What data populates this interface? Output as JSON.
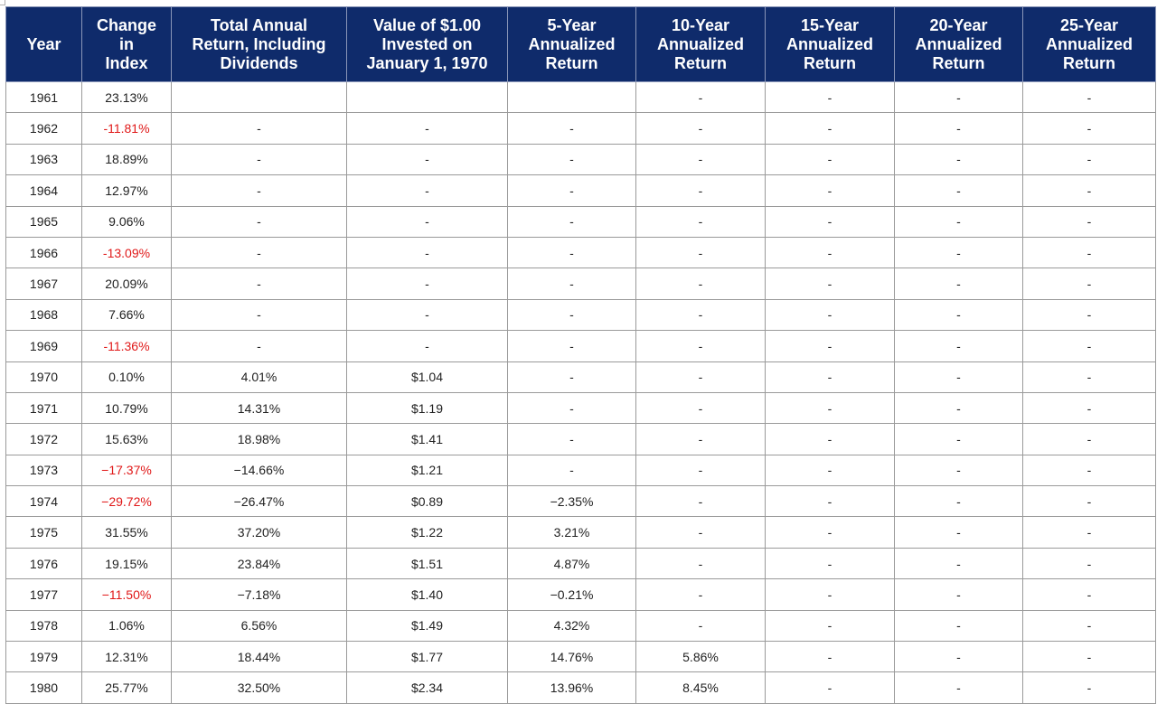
{
  "table": {
    "headers": [
      "Year",
      "Change\nin\nIndex",
      "Total Annual\nReturn, Including\nDividends",
      "Value of $1.00\nInvested on\nJanuary 1, 1970",
      "5-Year\nAnnualized\nReturn",
      "10-Year\nAnnualized\nReturn",
      "15-Year\nAnnualized\nReturn",
      "20-Year\nAnnualized\nReturn",
      "25-Year\nAnnualized\nReturn"
    ],
    "rows": [
      [
        "1961",
        "23.13%",
        "",
        "",
        "",
        "-",
        "-",
        "-",
        "-"
      ],
      [
        "1962",
        "-11.81%",
        "-",
        "-",
        "-",
        "-",
        "-",
        "-",
        "-"
      ],
      [
        "1963",
        "18.89%",
        "-",
        "-",
        "-",
        "-",
        "-",
        "-",
        "-"
      ],
      [
        "1964",
        "12.97%",
        "-",
        "-",
        "-",
        "-",
        "-",
        "-",
        "-"
      ],
      [
        "1965",
        "9.06%",
        "-",
        "-",
        "-",
        "-",
        "-",
        "-",
        "-"
      ],
      [
        "1966",
        "-13.09%",
        "-",
        "-",
        "-",
        "-",
        "-",
        "-",
        "-"
      ],
      [
        "1967",
        "20.09%",
        "-",
        "-",
        "-",
        "-",
        "-",
        "-",
        "-"
      ],
      [
        "1968",
        "7.66%",
        "-",
        "-",
        "-",
        "-",
        "-",
        "-",
        "-"
      ],
      [
        "1969",
        "-11.36%",
        "-",
        "-",
        "-",
        "-",
        "-",
        "-",
        "-"
      ],
      [
        "1970",
        "0.10%",
        "4.01%",
        "$1.04",
        "-",
        "-",
        "-",
        "-",
        "-"
      ],
      [
        "1971",
        "10.79%",
        "14.31%",
        "$1.19",
        "-",
        "-",
        "-",
        "-",
        "-"
      ],
      [
        "1972",
        "15.63%",
        "18.98%",
        "$1.41",
        "-",
        "-",
        "-",
        "-",
        "-"
      ],
      [
        "1973",
        "−17.37%",
        "−14.66%",
        "$1.21",
        "-",
        "-",
        "-",
        "-",
        "-"
      ],
      [
        "1974",
        "−29.72%",
        "−26.47%",
        "$0.89",
        "−2.35%",
        "-",
        "-",
        "-",
        "-"
      ],
      [
        "1975",
        "31.55%",
        "37.20%",
        "$1.22",
        "3.21%",
        "-",
        "-",
        "-",
        "-"
      ],
      [
        "1976",
        "19.15%",
        "23.84%",
        "$1.51",
        "4.87%",
        "-",
        "-",
        "-",
        "-"
      ],
      [
        "1977",
        "−11.50%",
        "−7.18%",
        "$1.40",
        "−0.21%",
        "-",
        "-",
        "-",
        "-"
      ],
      [
        "1978",
        "1.06%",
        "6.56%",
        "$1.49",
        "4.32%",
        "-",
        "-",
        "-",
        "-"
      ],
      [
        "1979",
        "12.31%",
        "18.44%",
        "$1.77",
        "14.76%",
        "5.86%",
        "-",
        "-",
        "-"
      ],
      [
        "1980",
        "25.77%",
        "32.50%",
        "$2.34",
        "13.96%",
        "8.45%",
        "-",
        "-",
        "-"
      ]
    ],
    "negative_color": "#e01818",
    "header_bg": "#0f2b6b"
  }
}
